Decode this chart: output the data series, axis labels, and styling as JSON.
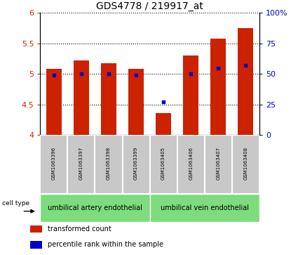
{
  "title": "GDS4778 / 219917_at",
  "samples": [
    "GSM1063396",
    "GSM1063397",
    "GSM1063398",
    "GSM1063399",
    "GSM1063405",
    "GSM1063406",
    "GSM1063407",
    "GSM1063408"
  ],
  "transformed_count": [
    5.08,
    5.22,
    5.18,
    5.08,
    4.36,
    5.3,
    5.58,
    5.75
  ],
  "percentile_rank": [
    49,
    50,
    50,
    49,
    27,
    50,
    55,
    57
  ],
  "ylim_left": [
    4.0,
    6.0
  ],
  "ylim_right": [
    0,
    100
  ],
  "yticks_left": [
    4.0,
    4.5,
    5.0,
    5.5,
    6.0
  ],
  "yticks_right": [
    0,
    25,
    50,
    75,
    100
  ],
  "bar_color": "#cc2200",
  "dot_color": "#0000cc",
  "bar_width": 0.55,
  "cell_types": [
    "umbilical artery endothelial",
    "umbilical vein endothelial"
  ],
  "cell_type_groups": [
    4,
    4
  ],
  "tick_label_color_left": "#cc2200",
  "tick_label_color_right": "#0000cc",
  "legend_items": [
    "transformed count",
    "percentile rank within the sample"
  ],
  "green_color": "#7ddc7d",
  "gray_color": "#c8c8c8"
}
